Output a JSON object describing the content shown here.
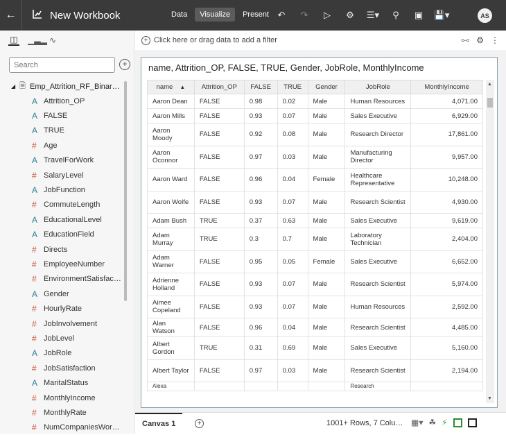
{
  "header": {
    "title": "New Workbook",
    "modes": [
      "Data",
      "Visualize",
      "Present"
    ],
    "active_mode": "Visualize",
    "avatar_initials": "AS"
  },
  "sidebar": {
    "search_placeholder": "Search",
    "dataset_name": "Emp_Attrition_RF_Binar…",
    "fields": [
      {
        "type": "A",
        "label": "Attrition_OP"
      },
      {
        "type": "A",
        "label": "FALSE"
      },
      {
        "type": "A",
        "label": "TRUE"
      },
      {
        "type": "#",
        "label": "Age"
      },
      {
        "type": "A",
        "label": "TravelForWork"
      },
      {
        "type": "#",
        "label": "SalaryLevel"
      },
      {
        "type": "A",
        "label": "JobFunction"
      },
      {
        "type": "#",
        "label": "CommuteLength"
      },
      {
        "type": "A",
        "label": "EducationalLevel"
      },
      {
        "type": "A",
        "label": "EducationField"
      },
      {
        "type": "#",
        "label": "Directs"
      },
      {
        "type": "#",
        "label": "EmployeeNumber"
      },
      {
        "type": "#",
        "label": "EnvironmentSatisfac…"
      },
      {
        "type": "A",
        "label": "Gender"
      },
      {
        "type": "#",
        "label": "HourlyRate"
      },
      {
        "type": "#",
        "label": "JobInvolvement"
      },
      {
        "type": "#",
        "label": "JobLevel"
      },
      {
        "type": "A",
        "label": "JobRole"
      },
      {
        "type": "#",
        "label": "JobSatisfaction"
      },
      {
        "type": "A",
        "label": "MaritalStatus"
      },
      {
        "type": "#",
        "label": "MonthlyIncome"
      },
      {
        "type": "#",
        "label": "MonthlyRate"
      },
      {
        "type": "#",
        "label": "NumCompaniesWor…"
      }
    ]
  },
  "filterbar": {
    "placeholder": "Click here or drag data to add a filter"
  },
  "viz": {
    "title": "name, Attrition_OP, FALSE, TRUE, Gender, JobRole, MonthlyIncome",
    "columns": [
      "name",
      "Attrition_OP",
      "FALSE",
      "TRUE",
      "Gender",
      "JobRole",
      "MonthlyIncome"
    ],
    "sort_indicator": "▲",
    "rows": [
      [
        "Aaron Dean",
        "FALSE",
        "0.98",
        "0.02",
        "Male",
        "Human Resources",
        "4,071.00"
      ],
      [
        "Aaron Mills",
        "FALSE",
        "0.93",
        "0.07",
        "Male",
        "Sales Executive",
        "6,929.00"
      ],
      [
        "Aaron Moody",
        "FALSE",
        "0.92",
        "0.08",
        "Male",
        "Research Director",
        "17,861.00"
      ],
      [
        "Aaron Oconnor",
        "FALSE",
        "0.97",
        "0.03",
        "Male",
        "Manufacturing Director",
        "9,957.00"
      ],
      [
        "Aaron Ward",
        "FALSE",
        "0.96",
        "0.04",
        "Female",
        "Healthcare Representative",
        "10,248.00"
      ],
      [
        "Aaron Wolfe",
        "FALSE",
        "0.93",
        "0.07",
        "Male",
        "Research Scientist",
        "4,930.00"
      ],
      [
        "Adam Bush",
        "TRUE",
        "0.37",
        "0.63",
        "Male",
        "Sales Executive",
        "9,619.00"
      ],
      [
        "Adam Murray",
        "TRUE",
        "0.3",
        "0.7",
        "Male",
        "Laboratory Technician",
        "2,404.00"
      ],
      [
        "Adam Warner",
        "FALSE",
        "0.95",
        "0.05",
        "Female",
        "Sales Executive",
        "6,652.00"
      ],
      [
        "Adrienne Holland",
        "FALSE",
        "0.93",
        "0.07",
        "Male",
        "Research Scientist",
        "5,974.00"
      ],
      [
        "Aimee Copeland",
        "FALSE",
        "0.93",
        "0.07",
        "Male",
        "Human Resources",
        "2,592.00"
      ],
      [
        "Alan Watson",
        "FALSE",
        "0.96",
        "0.04",
        "Male",
        "Research Scientist",
        "4,485.00"
      ],
      [
        "Albert Gordon",
        "TRUE",
        "0.31",
        "0.69",
        "Male",
        "Sales Executive",
        "5,160.00"
      ],
      [
        "Albert Taylor",
        "FALSE",
        "0.97",
        "0.03",
        "Male",
        "Research Scientist",
        "2,194.00"
      ],
      [
        "Alexa",
        "",
        "",
        "",
        "",
        "Research",
        ""
      ]
    ]
  },
  "bottombar": {
    "canvas_tab": "Canvas 1",
    "status": "1001+ Rows, 7 Colu…"
  }
}
